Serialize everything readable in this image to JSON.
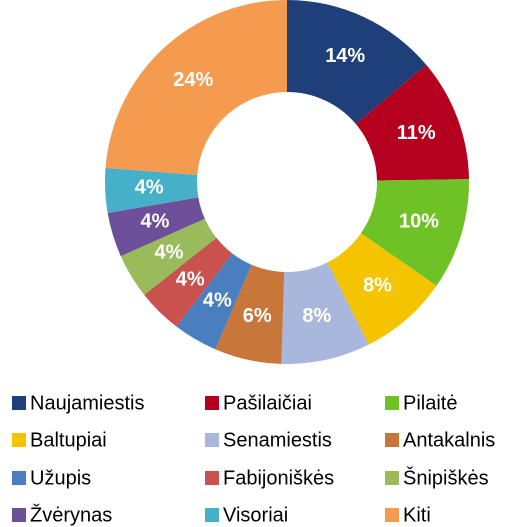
{
  "chart_data": {
    "type": "donut",
    "categories": [
      "Naujamiestis",
      "Pašilaičiai",
      "Pilaitė",
      "Baltupiai",
      "Senamiestis",
      "Antakalnis",
      "Užupis",
      "Fabijoniškės",
      "Šnipiškės",
      "Žvėrynas",
      "Visoriai",
      "Kiti"
    ],
    "values": [
      14,
      11,
      10,
      8,
      8,
      6,
      4,
      4,
      4,
      4,
      4,
      24
    ],
    "value_labels": [
      "14%",
      "11%",
      "10%",
      "8%",
      "8%",
      "6%",
      "4%",
      "4%",
      "4%",
      "4%",
      "4%",
      "24%"
    ],
    "colors": [
      "#1f3f7a",
      "#b5001f",
      "#6fc226",
      "#f5c400",
      "#a9b7dc",
      "#c8763a",
      "#4a7fbf",
      "#c9514e",
      "#99bb5c",
      "#6e4f9a",
      "#45b0c8",
      "#f59b4f"
    ],
    "legend": "bottom"
  }
}
